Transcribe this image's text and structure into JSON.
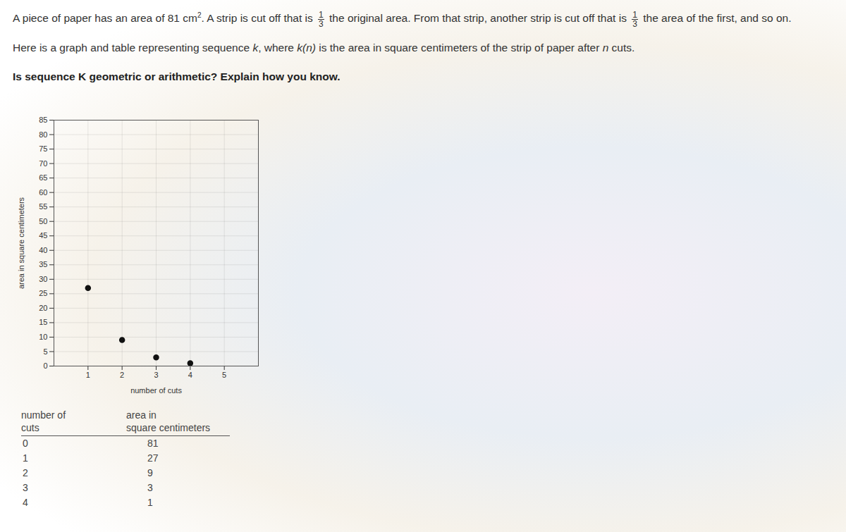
{
  "problem": {
    "paragraphs": [
      {
        "bold": false,
        "segments": [
          {
            "text": "A piece of paper has an area of 81 cm"
          },
          {
            "sup": "2"
          },
          {
            "text": ". A strip is cut off that is "
          },
          {
            "frac": [
              "1",
              "3"
            ]
          },
          {
            "text": " the original area. From that strip, another strip is cut off that is "
          },
          {
            "frac": [
              "1",
              "3"
            ]
          },
          {
            "text": " the area of the first, and so on."
          }
        ]
      },
      {
        "bold": false,
        "segments": [
          {
            "text": "Here is a graph and table representing sequence "
          },
          {
            "em": "k"
          },
          {
            "text": ", where "
          },
          {
            "em": "k(n)"
          },
          {
            "text": " is the area in square centimeters of the strip of paper after "
          },
          {
            "em": "n"
          },
          {
            "text": " cuts."
          }
        ]
      },
      {
        "bold": true,
        "segments": [
          {
            "text": "Is sequence K geometric or arithmetic? Explain how you know."
          }
        ]
      }
    ]
  },
  "chart_data": {
    "type": "scatter",
    "x_label": "number of cuts",
    "y_label": "area in square centimeters",
    "x": [
      1,
      2,
      3,
      4
    ],
    "values": [
      27,
      9,
      3,
      1
    ],
    "color": "#111111",
    "marker": "circle",
    "xlim": [
      0,
      6
    ],
    "xticks": [
      1,
      2,
      3,
      4,
      5
    ],
    "ylim": [
      0,
      85
    ],
    "yticks": [
      0,
      5,
      10,
      15,
      20,
      25,
      30,
      35,
      40,
      45,
      50,
      55,
      60,
      65,
      70,
      75,
      80,
      85
    ],
    "grid": true
  },
  "table": {
    "header": [
      "number of cuts",
      "area in square centimeters"
    ],
    "rows": [
      [
        0,
        81
      ],
      [
        1,
        27
      ],
      [
        2,
        9
      ],
      [
        3,
        3
      ],
      [
        4,
        1
      ]
    ]
  }
}
